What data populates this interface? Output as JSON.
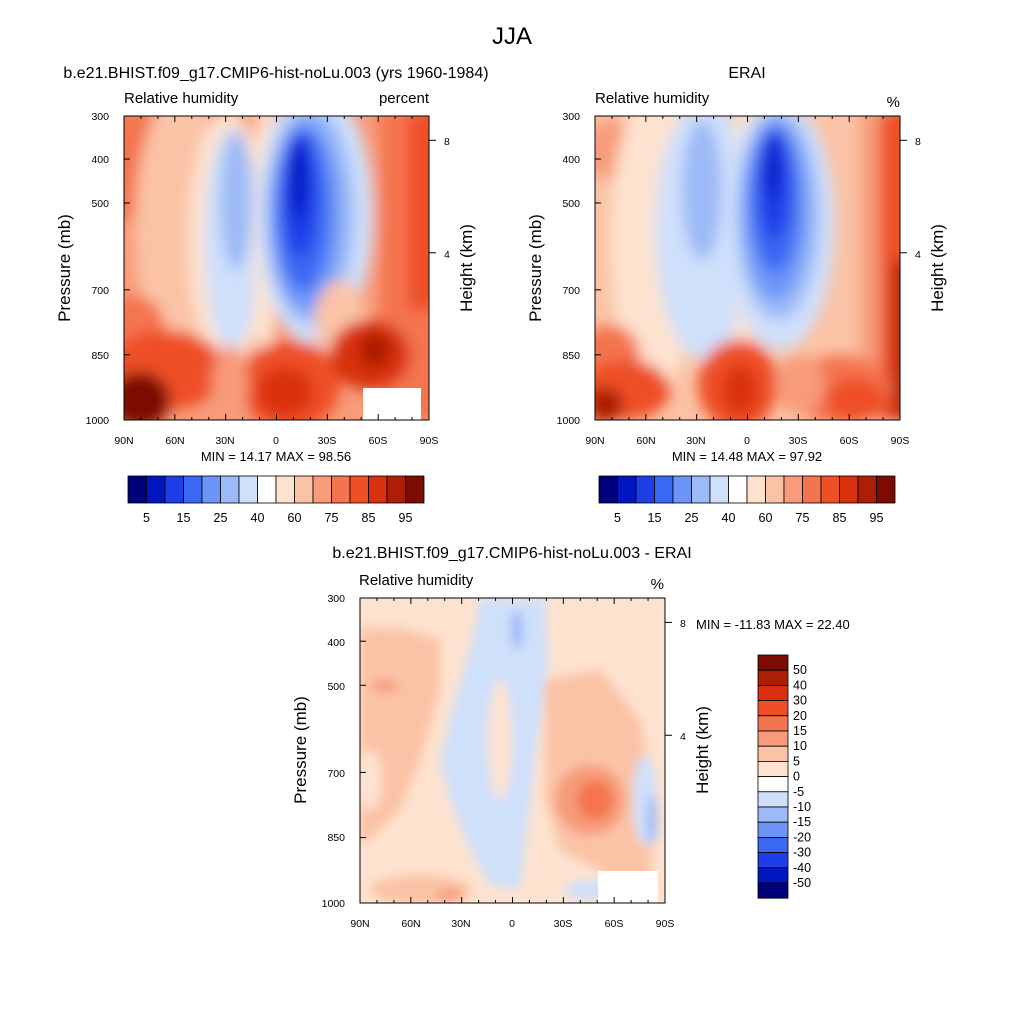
{
  "figure": {
    "title": "JJA"
  },
  "chart_data": [
    {
      "type": "heatmap",
      "title": "b.e21.BHIST.f09_g17.CMIP6-hist-noLu.003 (yrs 1960-1984)",
      "left_string": "Relative humidity",
      "right_string": "percent",
      "ylabel": "Pressure (mb)",
      "ylabel_right": "Height (km)",
      "x_ticks": [
        "90N",
        "60N",
        "30N",
        "0",
        "30S",
        "60S",
        "90S"
      ],
      "y_ticks": [
        "300",
        "400",
        "500",
        "700",
        "850",
        "1000"
      ],
      "y_right_ticks": [
        "8",
        "4"
      ],
      "scale": "log-pressure",
      "min": 14.17,
      "max": 98.56,
      "min_max_text": "MIN =  14.17  MAX =  98.56",
      "levels": [
        "5",
        "15",
        "25",
        "40",
        "60",
        "75",
        "85",
        "95"
      ],
      "colors": [
        "#00007a",
        "#0016c0",
        "#1e3ee8",
        "#3a68f2",
        "#6c95f7",
        "#9cbaf7",
        "#cfe0fb",
        "#ffffff",
        "#fde2cf",
        "#fbc3a6",
        "#f79b7a",
        "#f4744f",
        "#ee4f27",
        "#d9300d",
        "#ad1e06",
        "#7c0c02"
      ]
    },
    {
      "type": "heatmap",
      "title": "ERAI",
      "left_string": "Relative humidity",
      "right_string": "%",
      "ylabel": "Pressure (mb)",
      "ylabel_right": "Height (km)",
      "x_ticks": [
        "90N",
        "60N",
        "30N",
        "0",
        "30S",
        "60S",
        "90S"
      ],
      "y_ticks": [
        "300",
        "400",
        "500",
        "700",
        "850",
        "1000"
      ],
      "y_right_ticks": [
        "8",
        "4"
      ],
      "scale": "log-pressure",
      "min": 14.48,
      "max": 97.92,
      "min_max_text": "MIN =  14.48  MAX =  97.92",
      "levels": [
        "5",
        "15",
        "25",
        "40",
        "60",
        "75",
        "85",
        "95"
      ]
    },
    {
      "type": "heatmap",
      "title": "b.e21.BHIST.f09_g17.CMIP6-hist-noLu.003 - ERAI",
      "left_string": "Relative humidity",
      "right_string": "%",
      "ylabel": "Pressure (mb)",
      "ylabel_right": "Height (km)",
      "x_ticks": [
        "90N",
        "60N",
        "30N",
        "0",
        "30S",
        "60S",
        "90S"
      ],
      "y_ticks": [
        "300",
        "400",
        "500",
        "700",
        "850",
        "1000"
      ],
      "y_right_ticks": [
        "8",
        "4"
      ],
      "scale": "log-pressure",
      "min": -11.83,
      "max": 22.4,
      "min_max_text": "MIN = -11.83  MAX =  22.40",
      "levels": [
        "50",
        "40",
        "30",
        "20",
        "15",
        "10",
        "5",
        "0",
        "-5",
        "-10",
        "-15",
        "-20",
        "-30",
        "-40",
        "-50"
      ],
      "colors": [
        "#7c0c02",
        "#ad1e06",
        "#d9300d",
        "#ee4f27",
        "#f4744f",
        "#f79b7a",
        "#fbc3a6",
        "#fde2cf",
        "#ffffff",
        "#cfe0fb",
        "#9cbaf7",
        "#6c95f7",
        "#3a68f2",
        "#1e3ee8",
        "#0016c0",
        "#00007a"
      ]
    }
  ]
}
